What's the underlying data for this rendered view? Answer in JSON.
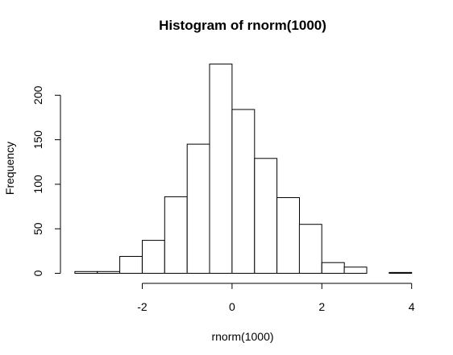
{
  "chart_data": {
    "type": "bar",
    "title": "Histogram of rnorm(1000)",
    "xlabel": "rnorm(1000)",
    "ylabel": "Frequency",
    "bin_width": 0.5,
    "bins": [
      {
        "start": -3.5,
        "end": -3.0,
        "count": 2
      },
      {
        "start": -3.0,
        "end": -2.5,
        "count": 2
      },
      {
        "start": -2.5,
        "end": -2.0,
        "count": 19
      },
      {
        "start": -2.0,
        "end": -1.5,
        "count": 37
      },
      {
        "start": -1.5,
        "end": -1.0,
        "count": 86
      },
      {
        "start": -1.0,
        "end": -0.5,
        "count": 145
      },
      {
        "start": -0.5,
        "end": 0.0,
        "count": 235
      },
      {
        "start": 0.0,
        "end": 0.5,
        "count": 184
      },
      {
        "start": 0.5,
        "end": 1.0,
        "count": 129
      },
      {
        "start": 1.0,
        "end": 1.5,
        "count": 85
      },
      {
        "start": 1.5,
        "end": 2.0,
        "count": 55
      },
      {
        "start": 2.0,
        "end": 2.5,
        "count": 12
      },
      {
        "start": 2.5,
        "end": 3.0,
        "count": 7
      },
      {
        "start": 3.0,
        "end": 3.5,
        "count": 0
      },
      {
        "start": 3.5,
        "end": 4.0,
        "count": 1
      }
    ],
    "x_ticks": [
      -2,
      0,
      2,
      4
    ],
    "x_tick_labels": [
      "-2",
      "0",
      "2",
      "4"
    ],
    "y_ticks": [
      0,
      50,
      100,
      150,
      200
    ],
    "y_tick_labels": [
      "0",
      "50",
      "100",
      "150",
      "200"
    ],
    "xlim": [
      -3.5,
      4
    ],
    "ylim": [
      0,
      235
    ],
    "grid": false,
    "legend": "none",
    "bar_fill": "#ffffff",
    "bar_stroke": "#000000"
  }
}
